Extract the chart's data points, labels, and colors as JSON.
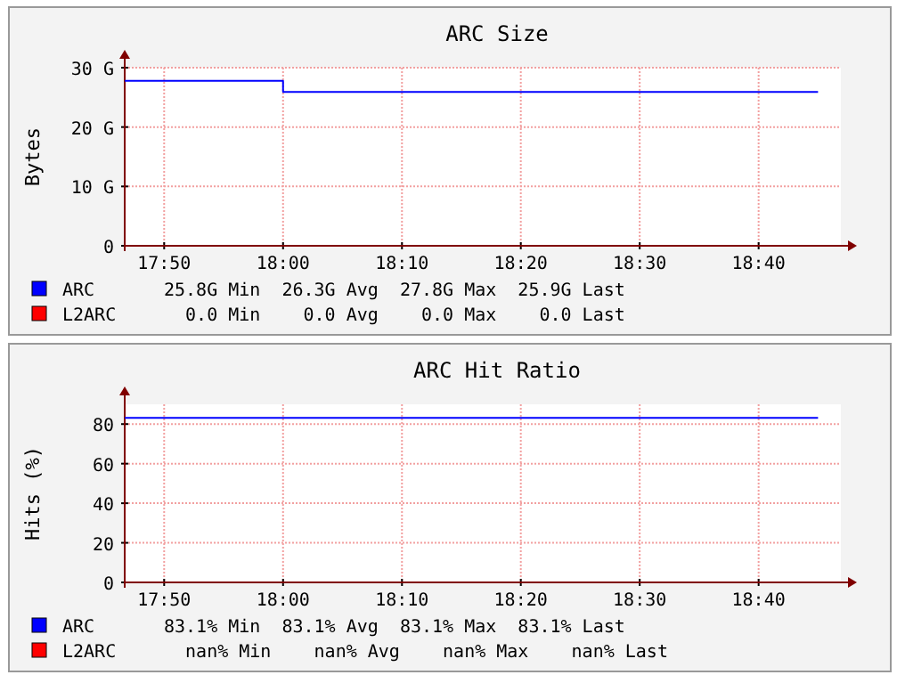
{
  "chart_data": [
    {
      "type": "step",
      "title": "ARC Size",
      "ylabel": "Bytes",
      "xlim": [
        17.778,
        18.782
      ],
      "xticks": [
        {
          "value": 17.8333,
          "label": "17:50"
        },
        {
          "value": 18,
          "label": "18:00"
        },
        {
          "value": 18.1667,
          "label": "18:10"
        },
        {
          "value": 18.3333,
          "label": "18:20"
        },
        {
          "value": 18.5,
          "label": "18:30"
        },
        {
          "value": 18.6667,
          "label": "18:40"
        }
      ],
      "ylim": [
        0,
        30
      ],
      "yticks": [
        0,
        {
          "value": 10,
          "label": "10 G"
        },
        {
          "value": 20,
          "label": "20 G"
        },
        {
          "value": 30,
          "label": "30 G"
        }
      ],
      "grid": true,
      "legend": "bottom",
      "x": [
        17.778,
        18.0,
        18.75
      ],
      "series": [
        {
          "name": "ARC",
          "color": "#0000ff",
          "values": [
            27.8,
            25.9,
            25.9
          ]
        },
        {
          "name": "L2ARC",
          "color": "#ff0000",
          "values": [
            null,
            null,
            null
          ]
        }
      ],
      "annotations": [
        "25.8G Min  26.3G Avg  27.8G Max  25.9G Last",
        "  0.0 Min    0.0 Avg    0.0 Max    0.0 Last"
      ]
    },
    {
      "type": "line",
      "title": "ARC Hit Ratio",
      "ylabel": "Hits (%)",
      "xlim": [
        17.778,
        18.782
      ],
      "xticks": [
        {
          "value": 17.8333,
          "label": "17:50"
        },
        {
          "value": 18,
          "label": "18:00"
        },
        {
          "value": 18.1667,
          "label": "18:10"
        },
        {
          "value": 18.3333,
          "label": "18:20"
        },
        {
          "value": 18.5,
          "label": "18:30"
        },
        {
          "value": 18.6667,
          "label": "18:40"
        }
      ],
      "ylim": [
        0,
        90
      ],
      "yticks": [
        0,
        20,
        40,
        60,
        80
      ],
      "grid": true,
      "legend": "bottom",
      "x": [
        17.778,
        18.75
      ],
      "series": [
        {
          "name": "ARC",
          "color": "#0000ff",
          "values": [
            83.1,
            83.1
          ]
        },
        {
          "name": "L2ARC",
          "color": "#ff0000",
          "values": [
            null,
            null
          ]
        }
      ],
      "annotations": [
        "83.1% Min  83.1% Avg  83.1% Max  83.1% Last",
        "  nan% Min    nan% Avg    nan% Max    nan% Last"
      ]
    }
  ]
}
